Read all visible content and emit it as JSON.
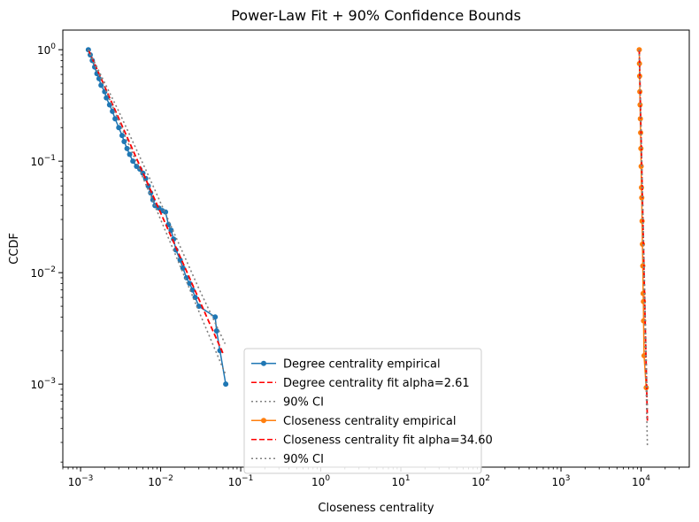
{
  "chart_data": {
    "type": "line",
    "title": "Power-Law Fit + 90% Confidence Bounds",
    "xlabel": "Closeness centrality",
    "ylabel": "CCDF",
    "xscale": "log",
    "yscale": "log",
    "xlim": [
      0.0006,
      40000
    ],
    "ylim": [
      0.00018,
      1.5
    ],
    "grid": false,
    "legend_position": "lower center",
    "x_ticks": [
      {
        "base": "10",
        "exp": "−3",
        "value": 0.001
      },
      {
        "base": "10",
        "exp": "−2",
        "value": 0.01
      },
      {
        "base": "10",
        "exp": "−1",
        "value": 0.1
      },
      {
        "base": "10",
        "exp": "0",
        "value": 1
      },
      {
        "base": "10",
        "exp": "1",
        "value": 10
      },
      {
        "base": "10",
        "exp": "2",
        "value": 100
      },
      {
        "base": "10",
        "exp": "3",
        "value": 1000
      },
      {
        "base": "10",
        "exp": "4",
        "value": 10000
      }
    ],
    "y_ticks": [
      {
        "base": "10",
        "exp": "0",
        "value": 1
      },
      {
        "base": "10",
        "exp": "−1",
        "value": 0.1
      },
      {
        "base": "10",
        "exp": "−2",
        "value": 0.01
      },
      {
        "base": "10",
        "exp": "−3",
        "value": 0.001
      }
    ],
    "series": [
      {
        "name": "Degree centrality empirical",
        "style": "line-marker",
        "color": "#1f77b4",
        "points": [
          [
            0.00125,
            1.0
          ],
          [
            0.00132,
            0.9
          ],
          [
            0.0014,
            0.8
          ],
          [
            0.0015,
            0.7
          ],
          [
            0.0016,
            0.61
          ],
          [
            0.0017,
            0.55
          ],
          [
            0.0018,
            0.48
          ],
          [
            0.002,
            0.42
          ],
          [
            0.0021,
            0.37
          ],
          [
            0.0023,
            0.32
          ],
          [
            0.0025,
            0.28
          ],
          [
            0.0027,
            0.24
          ],
          [
            0.003,
            0.2
          ],
          [
            0.0033,
            0.17
          ],
          [
            0.0035,
            0.15
          ],
          [
            0.0038,
            0.13
          ],
          [
            0.0041,
            0.115
          ],
          [
            0.0045,
            0.1
          ],
          [
            0.005,
            0.09
          ],
          [
            0.0055,
            0.085
          ],
          [
            0.006,
            0.078
          ],
          [
            0.0065,
            0.07
          ],
          [
            0.007,
            0.06
          ],
          [
            0.0075,
            0.052
          ],
          [
            0.008,
            0.045
          ],
          [
            0.0085,
            0.04
          ],
          [
            0.0095,
            0.038
          ],
          [
            0.0105,
            0.036
          ],
          [
            0.0115,
            0.035
          ],
          [
            0.0125,
            0.027
          ],
          [
            0.0135,
            0.024
          ],
          [
            0.0145,
            0.02
          ],
          [
            0.0155,
            0.016
          ],
          [
            0.0175,
            0.013
          ],
          [
            0.019,
            0.011
          ],
          [
            0.021,
            0.009
          ],
          [
            0.023,
            0.008
          ],
          [
            0.025,
            0.007
          ],
          [
            0.027,
            0.006
          ],
          [
            0.03,
            0.005
          ],
          [
            0.048,
            0.004
          ],
          [
            0.05,
            0.003
          ],
          [
            0.055,
            0.002
          ],
          [
            0.065,
            0.001
          ]
        ]
      },
      {
        "name": "Degree centrality fit alpha=2.61",
        "style": "dashed",
        "color": "#ff0000",
        "points": [
          [
            0.00125,
            1.0
          ],
          [
            0.0025,
            0.325
          ],
          [
            0.005,
            0.106
          ],
          [
            0.01,
            0.0344
          ],
          [
            0.02,
            0.0112
          ],
          [
            0.04,
            0.00363
          ],
          [
            0.06,
            0.00189
          ]
        ]
      },
      {
        "name": "90% CI",
        "style": "dotted",
        "color": "#808080",
        "points": [
          [
            0.00125,
            1.0
          ],
          [
            0.003,
            0.23
          ],
          [
            0.007,
            0.055
          ],
          [
            0.015,
            0.015
          ],
          [
            0.03,
            0.0045
          ],
          [
            0.0638,
            0.00125
          ]
        ]
      },
      {
        "name": "",
        "style": "dotted",
        "color": "#808080",
        "points": [
          [
            0.00125,
            1.0
          ],
          [
            0.003,
            0.28
          ],
          [
            0.007,
            0.075
          ],
          [
            0.015,
            0.022
          ],
          [
            0.03,
            0.0072
          ],
          [
            0.0638,
            0.0023
          ]
        ]
      },
      {
        "name": "Closeness centrality empirical",
        "style": "line-marker",
        "color": "#ff7f0e",
        "points": [
          [
            9500,
            1.0
          ],
          [
            9550,
            0.75
          ],
          [
            9600,
            0.58
          ],
          [
            9650,
            0.42
          ],
          [
            9720,
            0.32
          ],
          [
            9800,
            0.24
          ],
          [
            9880,
            0.18
          ],
          [
            9950,
            0.13
          ],
          [
            10030,
            0.09
          ],
          [
            10120,
            0.058
          ],
          [
            10200,
            0.047
          ],
          [
            10300,
            0.029
          ],
          [
            10400,
            0.018
          ],
          [
            10520,
            0.0115
          ],
          [
            10620,
            0.0065
          ],
          [
            10700,
            0.0055
          ],
          [
            10750,
            0.0037
          ],
          [
            10900,
            0.0018
          ],
          [
            11600,
            0.00093
          ]
        ]
      },
      {
        "name": "Closeness centrality fit alpha=34.60",
        "style": "dashed",
        "color": "#ff0000",
        "points": [
          [
            9500,
            1.0
          ],
          [
            10000,
            0.1744
          ],
          [
            10500,
            0.0344
          ],
          [
            11000,
            0.0075
          ],
          [
            11600,
            0.00141
          ],
          [
            12000,
            0.00047
          ]
        ]
      },
      {
        "name": "90% CI",
        "style": "dotted",
        "color": "#808080",
        "points": [
          [
            9500,
            1.0
          ],
          [
            10000,
            0.15
          ],
          [
            10500,
            0.028
          ],
          [
            11000,
            0.0058
          ],
          [
            11500,
            0.0012
          ],
          [
            12000,
            0.00028
          ]
        ]
      },
      {
        "name": "",
        "style": "dotted",
        "color": "#808080",
        "points": [
          [
            9500,
            1.0
          ],
          [
            10000,
            0.2
          ],
          [
            10500,
            0.042
          ],
          [
            11000,
            0.0095
          ],
          [
            11500,
            0.0023
          ],
          [
            12000,
            0.0006
          ]
        ]
      }
    ],
    "legend": [
      {
        "label": "Degree centrality empirical",
        "style": "line-marker",
        "color": "#1f77b4"
      },
      {
        "label": "Degree centrality fit alpha=2.61",
        "style": "dashed",
        "color": "#ff0000"
      },
      {
        "label": "90% CI",
        "style": "dotted",
        "color": "#808080"
      },
      {
        "label": "Closeness centrality empirical",
        "style": "line-marker",
        "color": "#ff7f0e"
      },
      {
        "label": "Closeness centrality fit alpha=34.60",
        "style": "dashed",
        "color": "#ff0000"
      },
      {
        "label": "90% CI",
        "style": "dotted",
        "color": "#808080"
      }
    ]
  }
}
